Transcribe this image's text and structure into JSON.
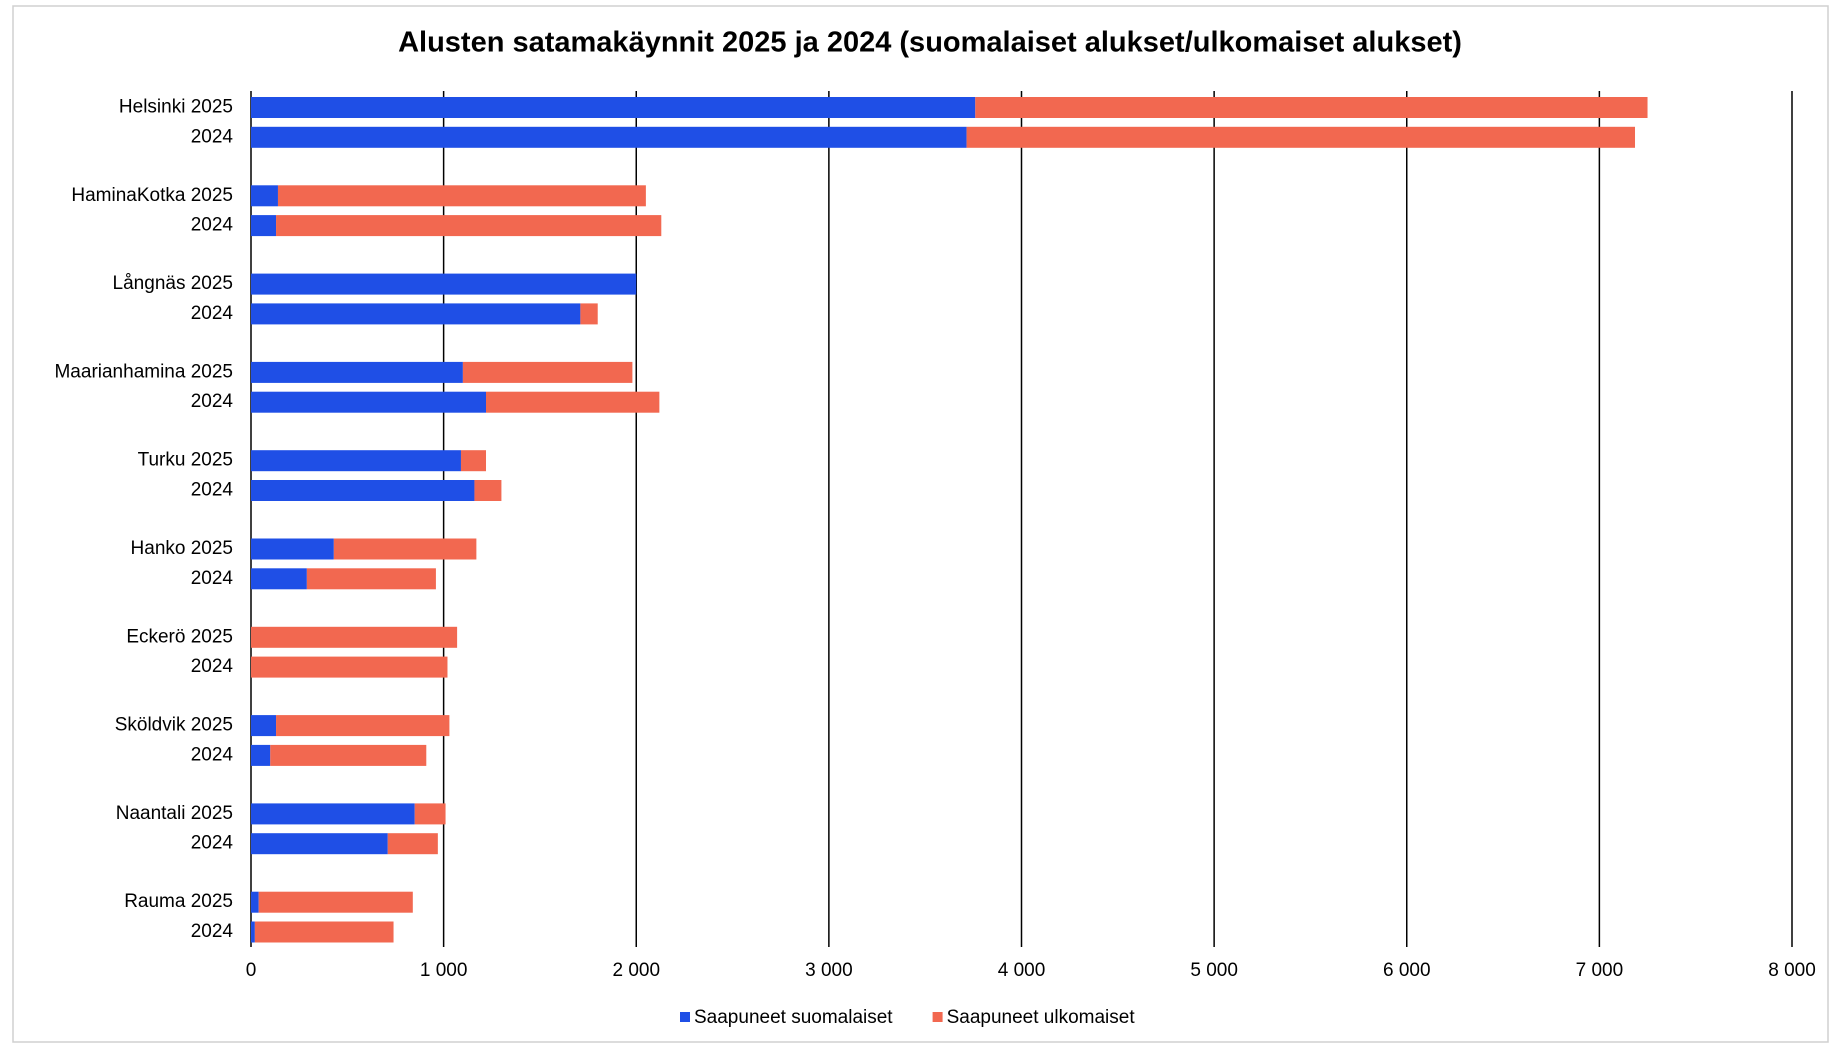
{
  "chart_data": {
    "type": "hbar_stacked",
    "title": "Alusten satamakäynnit 2025 ja 2024 (suomalaiset alukset/ulkomaiset alukset)",
    "categories": [
      "Helsinki 2025",
      "2024",
      "HaminaKotka 2025",
      "2024",
      "Långnäs 2025",
      "2024",
      "Maarianhamina 2025",
      "2024",
      "Turku 2025",
      "2024",
      "Hanko 2025",
      "2024",
      "Eckerö 2025",
      "2024",
      "Sköldvik 2025",
      "2024",
      "Naantali 2025",
      "2024",
      "Rauma 2025",
      "2024"
    ],
    "series": [
      {
        "name": "Saapuneet suomalaiset",
        "color": "#1f4fe6",
        "values": [
          3760,
          3715,
          140,
          130,
          2000,
          1710,
          1100,
          1220,
          1090,
          1160,
          430,
          290,
          0,
          0,
          130,
          100,
          850,
          710,
          40,
          20
        ]
      },
      {
        "name": "Saapuneet ulkomaiset",
        "color": "#f26850",
        "values": [
          3490,
          3470,
          1910,
          2000,
          0,
          90,
          880,
          900,
          130,
          140,
          740,
          670,
          1070,
          1020,
          900,
          810,
          160,
          260,
          800,
          720
        ]
      }
    ],
    "xlim": [
      0,
      8000
    ],
    "xticks": [
      0,
      {
        "value": 1000,
        "label": "1 000"
      },
      {
        "value": 2000,
        "label": "2 000"
      },
      {
        "value": 3000,
        "label": "3 000"
      },
      {
        "value": 4000,
        "label": "4 000"
      },
      {
        "value": 5000,
        "label": "5 000"
      },
      {
        "value": 6000,
        "label": "6 000"
      },
      {
        "value": 7000,
        "label": "7 000"
      },
      {
        "value": 8000,
        "label": "8 000"
      }
    ],
    "grid": true,
    "legend": "bottom"
  }
}
